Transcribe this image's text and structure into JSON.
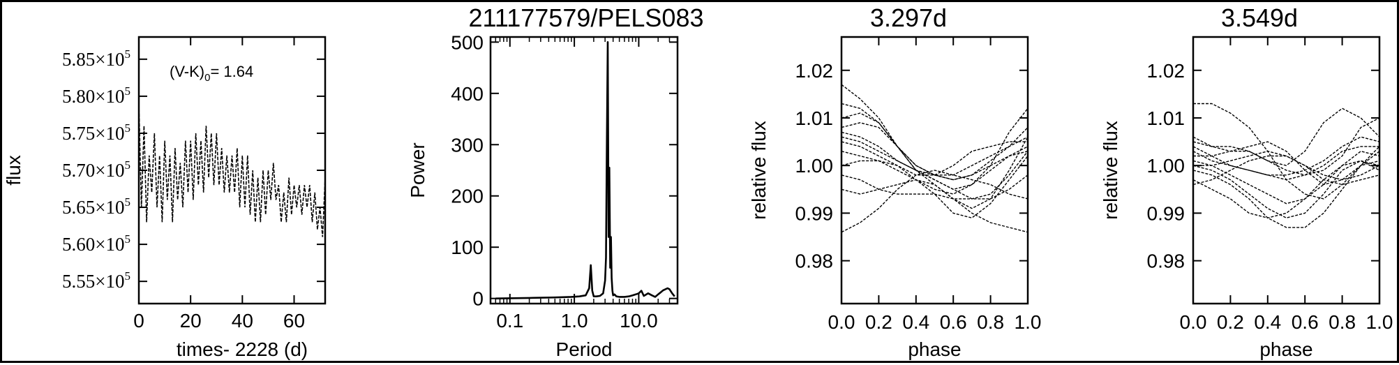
{
  "figure": {
    "title": "211177579/PELS083",
    "panel_titles": [
      "",
      "211177579/PELS083",
      "3.297d",
      "3.549d"
    ]
  },
  "chart_data": [
    {
      "type": "line",
      "xlabel": "times- 2228 (d)",
      "ylabel": "flux",
      "annotation": {
        "prefix": "(V-K)",
        "subscript": "0",
        "suffix": "= 1.64"
      },
      "xlim": [
        0,
        72
      ],
      "ylim": [
        552000,
        588000
      ],
      "xticks": [
        0,
        20,
        40,
        60
      ],
      "xtick_labels": [
        "0",
        "20",
        "40",
        "60"
      ],
      "yticks": [
        555000,
        560000,
        565000,
        570000,
        575000,
        580000,
        585000
      ],
      "ytick_labels": [
        "5.55",
        "5.60",
        "5.65",
        "5.70",
        "5.75",
        "5.80",
        "5.85"
      ],
      "ytick_exponent_base": "×10",
      "ytick_exponent": "5",
      "series": [
        {
          "x": [
            0,
            1,
            2,
            3,
            4,
            5,
            6,
            7,
            8,
            9,
            10,
            11,
            12,
            13,
            14,
            15,
            16,
            17,
            18,
            19,
            20,
            21,
            22,
            23,
            24,
            25,
            26,
            27,
            28,
            29,
            30,
            31,
            32,
            33,
            34,
            35,
            36,
            37,
            38,
            39,
            40,
            41,
            42,
            43,
            44,
            45,
            46,
            47,
            48,
            49,
            50,
            51,
            52,
            53,
            54,
            55,
            56,
            57,
            58,
            59,
            60,
            61,
            62,
            63,
            64,
            65,
            66,
            67,
            68,
            69,
            70,
            71,
            72
          ],
          "y": [
            579000,
            565000,
            576000,
            563000,
            572000,
            567000,
            575000,
            565000,
            572000,
            563000,
            574000,
            566000,
            572000,
            563000,
            573000,
            566000,
            571000,
            565000,
            574000,
            567000,
            574000,
            566000,
            575000,
            568000,
            574000,
            567000,
            576000,
            569000,
            575000,
            568000,
            575000,
            568000,
            573000,
            567000,
            572000,
            567000,
            572000,
            567000,
            573000,
            565000,
            572000,
            565000,
            572000,
            564000,
            570000,
            563000,
            569000,
            563000,
            570000,
            564000,
            570000,
            566000,
            571000,
            566000,
            568000,
            563000,
            567000,
            563000,
            569000,
            564000,
            568000,
            565000,
            568000,
            564000,
            568000,
            565000,
            568000,
            563000,
            567000,
            562000,
            565000,
            561000,
            569000
          ]
        }
      ]
    },
    {
      "type": "line",
      "xlabel": "Period",
      "ylabel": "Power",
      "xscale": "log",
      "xlim": [
        0.05,
        40
      ],
      "ylim": [
        -10,
        510
      ],
      "xticks": [
        0.1,
        1.0,
        10.0
      ],
      "xtick_labels": [
        "0.1",
        "1.0",
        "10.0"
      ],
      "yticks": [
        0,
        100,
        200,
        300,
        400,
        500
      ],
      "ytick_labels": [
        "0",
        "100",
        "200",
        "300",
        "400",
        "500"
      ],
      "series": [
        {
          "x": [
            0.06,
            0.2,
            0.5,
            0.9,
            1.2,
            1.5,
            1.7,
            1.8,
            1.9,
            2.0,
            2.2,
            2.5,
            2.8,
            3.0,
            3.1,
            3.2,
            3.3,
            3.4,
            3.5,
            3.6,
            3.7,
            3.8,
            3.9,
            4.0,
            4.2,
            4.5,
            5.0,
            6.0,
            7.0,
            8.0,
            9.0,
            10.0,
            11.0,
            12.0,
            14.0,
            16.0,
            18.0,
            20.0,
            22.0,
            24.0,
            26.0,
            28.0,
            30.0,
            33.0,
            36.0
          ],
          "y": [
            0,
            1,
            2,
            3,
            4,
            6,
            20,
            65,
            15,
            4,
            4,
            5,
            10,
            35,
            80,
            300,
            500,
            120,
            255,
            60,
            120,
            40,
            15,
            6,
            8,
            4,
            3,
            3,
            4,
            6,
            8,
            10,
            15,
            5,
            10,
            6,
            3,
            8,
            12,
            16,
            18,
            20,
            18,
            10,
            4
          ]
        }
      ]
    },
    {
      "type": "line",
      "title": "3.297d",
      "xlabel": "phase",
      "ylabel": "relative flux",
      "xlim": [
        0.0,
        1.0
      ],
      "ylim": [
        0.971,
        1.027
      ],
      "xticks": [
        0.0,
        0.2,
        0.4,
        0.6,
        0.8,
        1.0
      ],
      "xtick_labels": [
        "0.0",
        "0.2",
        "0.4",
        "0.6",
        "0.8",
        "1.0"
      ],
      "yticks": [
        0.98,
        0.99,
        1.0,
        1.01,
        1.02
      ],
      "ytick_labels": [
        "0.98",
        "0.99",
        "1.00",
        "1.01",
        "1.02"
      ],
      "phase": [
        0.0,
        0.1,
        0.2,
        0.3,
        0.4,
        0.5,
        0.6,
        0.7,
        0.8,
        0.9,
        1.0
      ],
      "series": [
        {
          "y": [
            1.017,
            1.014,
            1.01,
            1.004,
            0.999,
            0.996,
            0.993,
            0.991,
            0.993,
            0.999,
            1.006
          ]
        },
        {
          "y": [
            1.013,
            1.012,
            1.009,
            1.004,
            0.999,
            0.997,
            0.995,
            0.996,
            1.0,
            1.007,
            1.012
          ]
        },
        {
          "y": [
            1.01,
            1.011,
            1.009,
            1.004,
            1.0,
            0.998,
            0.997,
            0.998,
            1.001,
            1.004,
            1.008
          ]
        },
        {
          "y": [
            1.008,
            1.009,
            1.008,
            1.004,
            1.0,
            0.998,
            0.997,
            0.998,
            1.0,
            1.002,
            1.003
          ]
        },
        {
          "y": [
            1.007,
            1.006,
            1.004,
            1.001,
            0.999,
            0.998,
            0.998,
            1.0,
            1.002,
            1.004,
            1.006
          ]
        },
        {
          "y": [
            1.005,
            1.004,
            1.002,
            1.0,
            0.998,
            0.998,
            1.0,
            1.003,
            1.004,
            1.005,
            1.005
          ]
        },
        {
          "y": [
            1.003,
            1.002,
            1.001,
            0.999,
            0.997,
            0.995,
            0.994,
            0.996,
            0.999,
            1.002,
            1.004
          ]
        },
        {
          "y": [
            1.0,
            1.001,
            1.001,
            1.0,
            0.997,
            0.994,
            0.99,
            0.989,
            0.992,
            0.997,
            1.002
          ]
        },
        {
          "y": [
            0.998,
            0.997,
            0.995,
            0.994,
            0.994,
            0.994,
            0.993,
            0.993,
            0.994,
            0.998,
            1.003
          ]
        },
        {
          "y": [
            0.995,
            0.994,
            0.995,
            0.996,
            0.997,
            0.996,
            0.993,
            0.99,
            0.988,
            0.987,
            0.986
          ]
        },
        {
          "y": [
            0.986,
            0.988,
            0.991,
            0.995,
            0.998,
            0.999,
            0.998,
            0.997,
            0.996,
            0.994,
            0.993
          ]
        },
        {
          "y": [
            1.006,
            1.005,
            1.003,
            1.001,
            0.999,
            0.997,
            0.995,
            0.993,
            0.993,
            0.995,
            0.998
          ]
        }
      ]
    },
    {
      "type": "line",
      "title": "3.549d",
      "xlabel": "phase",
      "ylabel": "relative flux",
      "xlim": [
        0.0,
        1.0
      ],
      "ylim": [
        0.971,
        1.027
      ],
      "xticks": [
        0.0,
        0.2,
        0.4,
        0.6,
        0.8,
        1.0
      ],
      "xtick_labels": [
        "0.0",
        "0.2",
        "0.4",
        "0.6",
        "0.8",
        "1.0"
      ],
      "yticks": [
        0.98,
        0.99,
        1.0,
        1.01,
        1.02
      ],
      "ytick_labels": [
        "0.98",
        "0.99",
        "1.00",
        "1.01",
        "1.02"
      ],
      "phase": [
        0.0,
        0.1,
        0.2,
        0.3,
        0.4,
        0.5,
        0.6,
        0.7,
        0.8,
        0.9,
        1.0
      ],
      "series": [
        {
          "y": [
            1.013,
            1.013,
            1.011,
            1.008,
            1.003,
            0.997,
            0.994,
            0.993,
            0.996,
            1.0,
            1.001
          ]
        },
        {
          "y": [
            1.006,
            1.004,
            1.004,
            1.003,
            1.001,
            1.0,
            1.003,
            1.009,
            1.012,
            1.01,
            1.006
          ]
        },
        {
          "y": [
            1.005,
            1.004,
            1.003,
            1.004,
            1.005,
            1.003,
            0.999,
            0.996,
            0.997,
            1.0,
            1.004
          ]
        },
        {
          "y": [
            1.004,
            1.002,
            1.0,
            0.999,
            0.998,
            0.998,
            0.999,
            1.001,
            1.004,
            1.006,
            1.005
          ]
        },
        {
          "y": [
            1.002,
            1.002,
            1.003,
            1.003,
            1.001,
            0.999,
            0.998,
            0.999,
            1.002,
            1.008,
            1.01
          ]
        },
        {
          "y": [
            1.0,
            0.999,
            0.997,
            0.994,
            0.991,
            0.989,
            0.99,
            0.994,
            0.999,
            1.001,
            1.0
          ]
        },
        {
          "y": [
            0.999,
            0.998,
            0.996,
            0.993,
            0.989,
            0.987,
            0.987,
            0.99,
            0.995,
            1.0,
            1.003
          ]
        },
        {
          "y": [
            0.997,
            0.995,
            0.993,
            0.99,
            0.989,
            0.99,
            0.993,
            0.997,
            1.0,
            1.001,
            0.999
          ]
        },
        {
          "y": [
            0.996,
            0.997,
            0.999,
            1.001,
            1.002,
            1.002,
            1.0,
            0.997,
            0.996,
            0.997,
            0.998
          ]
        },
        {
          "y": [
            1.001,
            1.0,
            0.998,
            0.996,
            0.994,
            0.992,
            0.993,
            0.996,
            1.0,
            1.003,
            1.002
          ]
        },
        {
          "y": [
            1.003,
            1.001,
            1.0,
            0.999,
            0.998,
            0.997,
            0.998,
            1.0,
            1.003,
            1.004,
            1.004
          ]
        },
        {
          "y": [
            1.0,
            1.0,
            1.001,
            1.002,
            1.003,
            1.002,
            1.0,
            0.998,
            0.997,
            0.998,
            1.0
          ]
        }
      ]
    }
  ]
}
